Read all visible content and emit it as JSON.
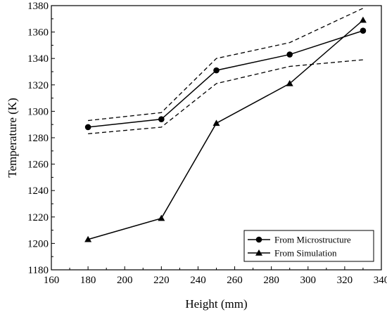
{
  "chart_data": {
    "type": "line",
    "xlabel": "Height (mm)",
    "ylabel": "Temperature (K)",
    "xlim": [
      160,
      340
    ],
    "ylim": [
      1180,
      1380
    ],
    "xticks": [
      160,
      180,
      200,
      220,
      240,
      260,
      280,
      300,
      320,
      340
    ],
    "yticks": [
      1180,
      1200,
      1220,
      1240,
      1260,
      1280,
      1300,
      1320,
      1340,
      1360,
      1380
    ],
    "x": [
      180,
      220,
      250,
      290,
      330
    ],
    "series": [
      {
        "name": "From Microstructure",
        "marker": "circle",
        "values": [
          1288,
          1294,
          1331,
          1343,
          1361
        ]
      },
      {
        "name": "From Simulation",
        "marker": "triangle",
        "values": [
          1203,
          1219,
          1291,
          1321,
          1369
        ]
      }
    ],
    "bounds": [
      {
        "style": "dashed",
        "values": [
          1293,
          1299,
          1340,
          1352,
          1378
        ]
      },
      {
        "style": "dashed",
        "values": [
          1283,
          1288,
          1321,
          1334,
          1339
        ]
      }
    ],
    "legend_position": "bottom-right",
    "grid": false
  },
  "colors": {
    "line": "#000000",
    "background": "#ffffff"
  }
}
